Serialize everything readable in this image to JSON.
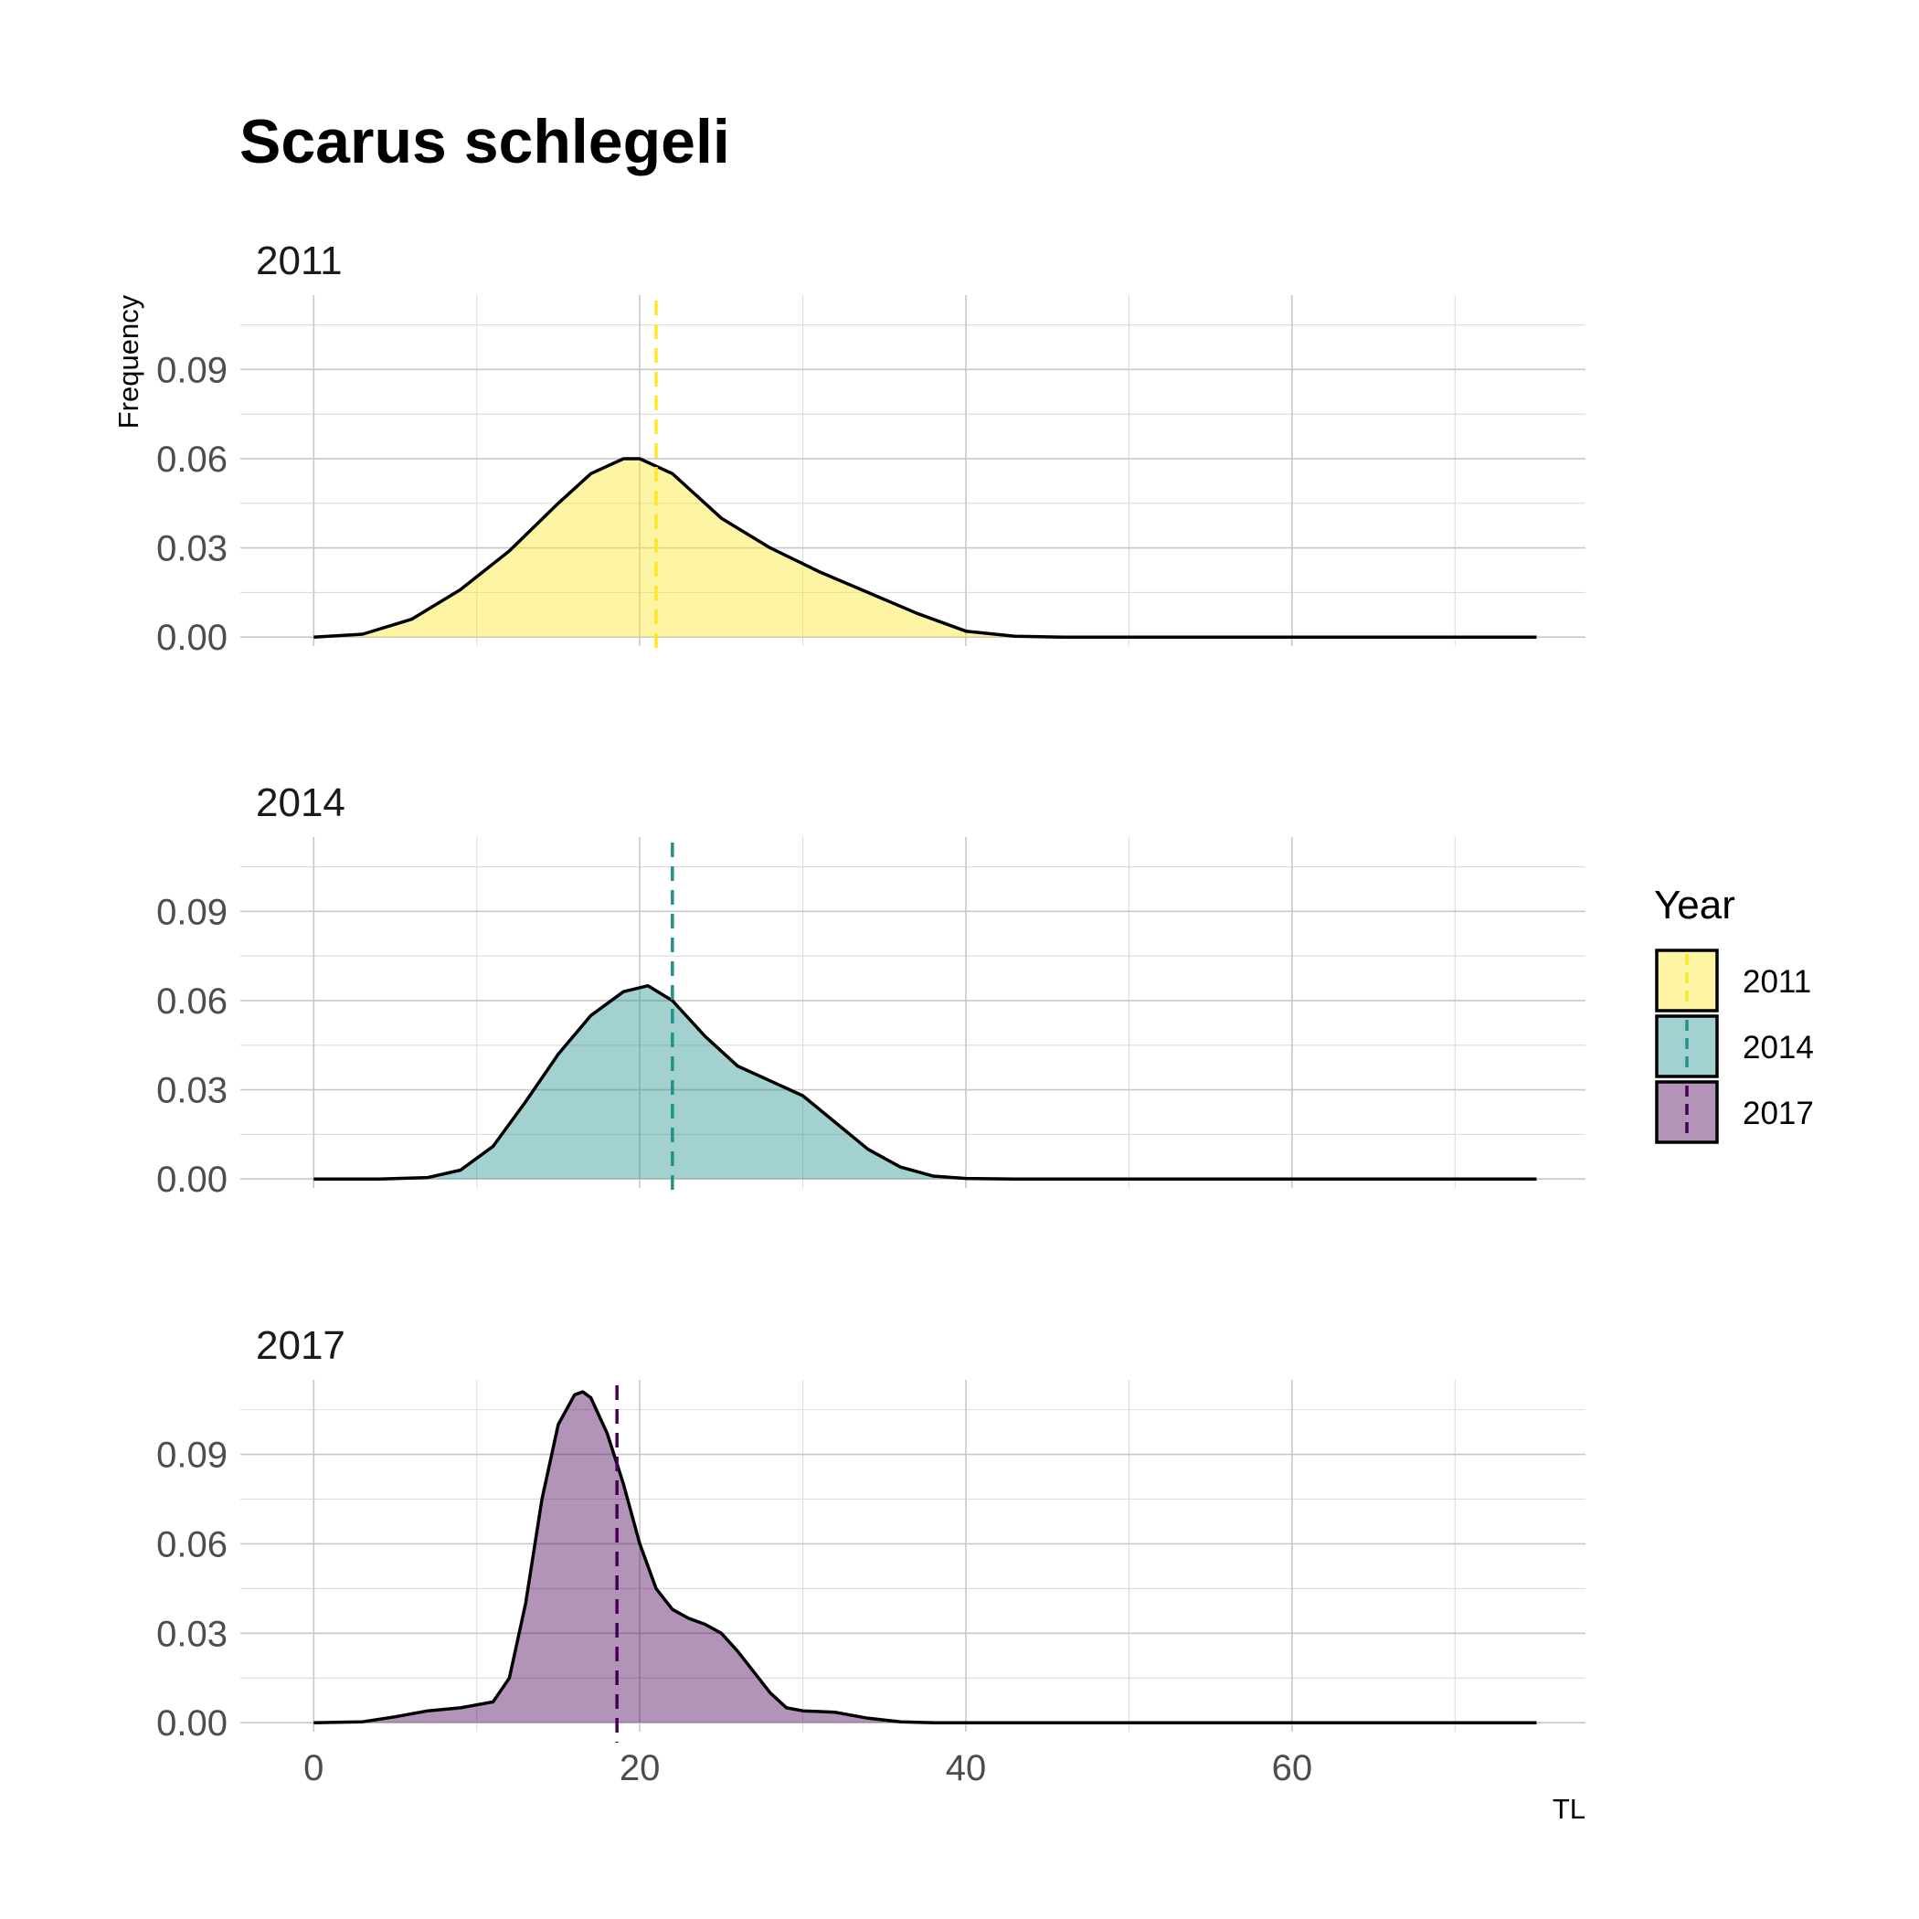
{
  "chart_data": {
    "type": "area",
    "title": "Scarus schlegeli",
    "xlabel": "TL",
    "ylabel": "Frequency",
    "xlim": [
      -4.5,
      78
    ],
    "ylim": [
      -0.003,
      0.115
    ],
    "x_ticks": [
      0,
      20,
      40,
      60
    ],
    "x_tick_labels": [
      "0",
      "20",
      "40",
      "60"
    ],
    "y_ticks": [
      0,
      0.03,
      0.06,
      0.09
    ],
    "y_tick_labels": [
      "0.00",
      "0.03",
      "0.06",
      "0.09"
    ],
    "grid": true,
    "legend": {
      "title": "Year",
      "placement": "right",
      "entries": [
        "2011",
        "2014",
        "2017"
      ]
    },
    "series": [
      {
        "name": "2011",
        "facet_label": "2011",
        "fill": "#FDE725",
        "line": "#FDE725",
        "mean_line": 21,
        "x": [
          0,
          3,
          6,
          9,
          12,
          15,
          17,
          19,
          20,
          22,
          25,
          28,
          31,
          34,
          37,
          40,
          43,
          46,
          50,
          55,
          60,
          65,
          70,
          75
        ],
        "y": [
          0.0,
          0.001,
          0.006,
          0.016,
          0.029,
          0.045,
          0.055,
          0.06,
          0.06,
          0.055,
          0.04,
          0.03,
          0.022,
          0.015,
          0.008,
          0.002,
          0.0003,
          0.0,
          0.0,
          0.0,
          0.0,
          0.0,
          0.0,
          0.0
        ]
      },
      {
        "name": "2014",
        "facet_label": "2014",
        "fill": "#21918C",
        "line": "#21918C",
        "mean_line": 22,
        "x": [
          0,
          4,
          7,
          9,
          11,
          13,
          15,
          17,
          19,
          20.5,
          22,
          24,
          26,
          28,
          30,
          32,
          34,
          36,
          38,
          40,
          43,
          46,
          50,
          55,
          60,
          65,
          70,
          75
        ],
        "y": [
          0.0,
          0.0,
          0.0005,
          0.003,
          0.011,
          0.026,
          0.042,
          0.055,
          0.063,
          0.065,
          0.06,
          0.048,
          0.038,
          0.033,
          0.028,
          0.019,
          0.01,
          0.004,
          0.001,
          0.0002,
          0.0,
          0.0,
          0.0,
          0.0,
          0.0,
          0.0,
          0.0,
          0.0
        ]
      },
      {
        "name": "2017",
        "facet_label": "2017",
        "fill": "#440154",
        "line": "#440154",
        "mean_line": 18.6,
        "x": [
          0,
          3,
          5,
          7,
          9,
          11,
          12,
          13,
          14,
          15,
          16,
          16.5,
          17,
          18,
          19,
          20,
          21,
          22,
          23,
          24,
          25,
          26,
          27,
          28,
          29,
          30,
          32,
          34,
          36,
          38,
          40,
          45,
          50,
          55,
          60,
          65,
          70,
          75
        ],
        "y": [
          0.0,
          0.0003,
          0.002,
          0.004,
          0.005,
          0.007,
          0.015,
          0.04,
          0.075,
          0.1,
          0.11,
          0.111,
          0.109,
          0.097,
          0.08,
          0.06,
          0.045,
          0.038,
          0.035,
          0.033,
          0.03,
          0.024,
          0.017,
          0.01,
          0.005,
          0.004,
          0.0035,
          0.0015,
          0.0003,
          0.0,
          0.0,
          0.0,
          0.0,
          0.0,
          0.0,
          0.0,
          0.0,
          0.0
        ]
      }
    ]
  }
}
